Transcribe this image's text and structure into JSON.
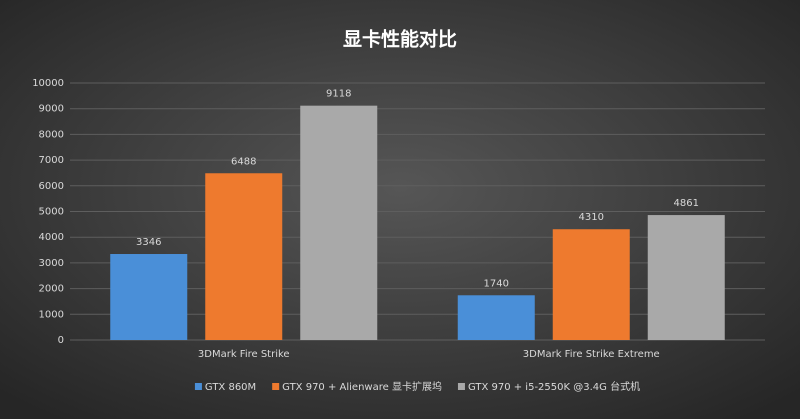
{
  "chart_data": {
    "type": "bar",
    "title": "显卡性能对比",
    "categories": [
      "3DMark Fire Strike",
      "3DMark Fire Strike Extreme"
    ],
    "series": [
      {
        "name": "GTX 860M",
        "color": "#4a8fd8",
        "values": [
          3346,
          1740
        ]
      },
      {
        "name": "GTX 970 + Alienware 显卡扩展坞",
        "color": "#ee7a2e",
        "values": [
          6488,
          4310
        ]
      },
      {
        "name": "GTX 970 + i5-2550K @3.4G 台式机",
        "color": "#a9a9a9",
        "values": [
          9118,
          4861
        ]
      }
    ],
    "ylim": [
      0,
      10000
    ],
    "yticks": [
      0,
      1000,
      2000,
      3000,
      4000,
      5000,
      6000,
      7000,
      8000,
      9000,
      10000
    ],
    "grid": true,
    "legend": "bottom"
  }
}
